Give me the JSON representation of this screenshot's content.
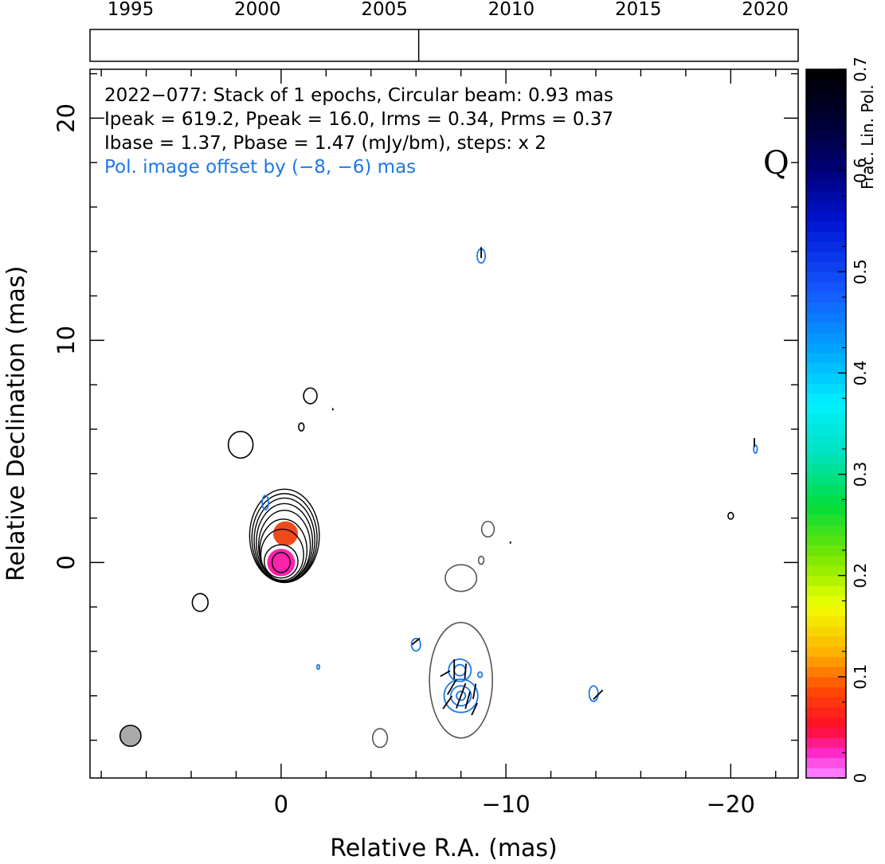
{
  "chart_data": {
    "type": "contour",
    "title_lines": [
      "2022−077: Stack of 1 epochs, Circular beam: 0.93 mas",
      "Ipeak = 619.2, Ppeak = 16.0, Irms = 0.34, Prms = 0.37",
      "Ibase = 1.37, Pbase = 1.47 (mJy/bm), steps: x 2"
    ],
    "offset_note": "Pol. image offset by (−8, −6) mas",
    "band_label": "Q",
    "xlabel": "Relative R.A. (mas)",
    "ylabel": "Relative Declination (mas)",
    "xlim": [
      8.5,
      -23
    ],
    "ylim": [
      -9.7,
      22.2
    ],
    "x_ticks": [
      0,
      -10,
      -20
    ],
    "x_tick_labels": [
      "0",
      "−10",
      "−20"
    ],
    "y_ticks": [
      0,
      10,
      20
    ],
    "y_tick_labels": [
      "0",
      "10",
      "20"
    ],
    "timeline": {
      "years": [
        1995,
        2000,
        2005,
        2010,
        2015,
        2020
      ],
      "labels": [
        "1995",
        "2000",
        "2005",
        "2010",
        "2015",
        "2020"
      ],
      "range": [
        1993.4,
        2021.3
      ],
      "epochs": [
        2006.35
      ]
    },
    "colorbar": {
      "label": "Frac. Lin. Pol.",
      "range": [
        0,
        0.7
      ],
      "ticks": [
        0,
        0.1,
        0.2,
        0.3,
        0.4,
        0.5,
        0.6,
        0.7
      ],
      "tick_labels": [
        "0",
        "0.1",
        "0.2",
        "0.3",
        "0.4",
        "0.5",
        "0.6",
        "0.7"
      ]
    },
    "beam": {
      "x": 6.7,
      "y": -7.8,
      "diameter": 0.93,
      "color": "#aaaaaa"
    },
    "colors": {
      "stokes_i": "#000000",
      "negative": "#555555",
      "polarization": "#1e78e6",
      "magenta": "#ff22aa"
    },
    "core": {
      "x": 0,
      "y": 0,
      "contours": [
        {
          "rx": 0.4,
          "ry": 0.45,
          "dx": 0,
          "dy": 0
        },
        {
          "rx": 0.75,
          "ry": 0.75,
          "dx": 0,
          "dy": 0.05
        },
        {
          "rx": 0.95,
          "ry": 1.15,
          "dx": -0.05,
          "dy": 0.35
        },
        {
          "rx": 1.05,
          "ry": 1.4,
          "dx": -0.1,
          "dy": 0.55
        },
        {
          "rx": 1.15,
          "ry": 1.6,
          "dx": -0.15,
          "dy": 0.75
        },
        {
          "rx": 1.25,
          "ry": 1.75,
          "dx": -0.15,
          "dy": 0.9
        },
        {
          "rx": 1.35,
          "ry": 1.9,
          "dx": -0.15,
          "dy": 1.0
        },
        {
          "rx": 1.45,
          "ry": 2.0,
          "dx": -0.15,
          "dy": 1.1
        },
        {
          "rx": 1.55,
          "ry": 2.1,
          "dx": -0.15,
          "dy": 1.2
        }
      ],
      "fill_blobs": [
        {
          "x": 0,
          "y": 0,
          "r": 0.62,
          "color": "#ff22aa"
        },
        {
          "x": -0.2,
          "y": 1.3,
          "r": 0.55,
          "color": "#f04a1c"
        }
      ]
    },
    "stokes_i_blobs": [
      {
        "x": 1.8,
        "y": 5.3,
        "rx": 0.55,
        "ry": 0.6
      },
      {
        "x": -1.3,
        "y": 7.5,
        "rx": 0.3,
        "ry": 0.35
      },
      {
        "x": -0.9,
        "y": 6.1,
        "rx": 0.12,
        "ry": 0.18
      },
      {
        "x": 3.6,
        "y": -1.8,
        "rx": 0.35,
        "ry": 0.4
      },
      {
        "x": -20.0,
        "y": 2.1,
        "rx": 0.12,
        "ry": 0.15
      }
    ],
    "negative_blobs": [
      {
        "x": -8.0,
        "y": -5.3,
        "rx": 1.4,
        "ry": 2.6
      },
      {
        "x": -8.0,
        "y": -0.7,
        "rx": 0.7,
        "ry": 0.6
      },
      {
        "x": -9.2,
        "y": 1.5,
        "rx": 0.28,
        "ry": 0.35
      },
      {
        "x": -8.9,
        "y": 0.1,
        "rx": 0.12,
        "ry": 0.18
      },
      {
        "x": -4.4,
        "y": -7.9,
        "rx": 0.33,
        "ry": 0.42
      }
    ],
    "polarization_blobs": [
      {
        "x": -8.0,
        "y": -6.0,
        "rx": 0.75,
        "ry": 0.75
      },
      {
        "x": -8.0,
        "y": -6.0,
        "rx": 0.45,
        "ry": 0.45
      },
      {
        "x": -8.0,
        "y": -6.0,
        "rx": 0.2,
        "ry": 0.2
      },
      {
        "x": -7.95,
        "y": -4.85,
        "rx": 0.5,
        "ry": 0.5
      },
      {
        "x": -7.95,
        "y": -4.85,
        "rx": 0.25,
        "ry": 0.25
      },
      {
        "x": -8.9,
        "y": 13.8,
        "rx": 0.18,
        "ry": 0.32
      },
      {
        "x": 0.7,
        "y": 2.7,
        "rx": 0.14,
        "ry": 0.32
      },
      {
        "x": -6.0,
        "y": -3.7,
        "rx": 0.2,
        "ry": 0.28
      },
      {
        "x": -13.9,
        "y": -5.9,
        "rx": 0.2,
        "ry": 0.35
      },
      {
        "x": -21.1,
        "y": 5.1,
        "rx": 0.08,
        "ry": 0.18
      },
      {
        "x": -1.65,
        "y": -4.7,
        "rx": 0.06,
        "ry": 0.1
      },
      {
        "x": -8.85,
        "y": -5.05,
        "rx": 0.1,
        "ry": 0.12
      }
    ],
    "evpa_ticks": [
      {
        "x": -8.0,
        "y": -6.0,
        "angle": 70,
        "len": 1.2
      },
      {
        "x": -7.6,
        "y": -5.6,
        "angle": 60,
        "len": 0.8
      },
      {
        "x": -8.3,
        "y": -6.2,
        "angle": 75,
        "len": 0.8
      },
      {
        "x": -7.4,
        "y": -6.3,
        "angle": 55,
        "len": 0.7
      },
      {
        "x": -8.6,
        "y": -5.8,
        "angle": 80,
        "len": 0.7
      },
      {
        "x": -7.7,
        "y": -4.8,
        "angle": 90,
        "len": 0.9
      },
      {
        "x": -8.2,
        "y": -4.9,
        "angle": 85,
        "len": 0.7
      },
      {
        "x": -8.6,
        "y": -6.6,
        "angle": 65,
        "len": 0.6
      },
      {
        "x": -7.3,
        "y": -5.0,
        "angle": 30,
        "len": 0.5
      },
      {
        "x": -8.9,
        "y": 13.95,
        "angle": 90,
        "len": 0.5
      },
      {
        "x": -6.0,
        "y": -3.55,
        "angle": 40,
        "len": 0.45
      },
      {
        "x": -14.1,
        "y": -5.95,
        "angle": 45,
        "len": 0.6
      },
      {
        "x": -21.05,
        "y": 5.4,
        "angle": 90,
        "len": 0.4
      },
      {
        "x": -2.3,
        "y": 6.9,
        "angle": 90,
        "len": 0.1
      },
      {
        "x": -10.2,
        "y": 0.9,
        "angle": 90,
        "len": 0.1
      }
    ]
  }
}
